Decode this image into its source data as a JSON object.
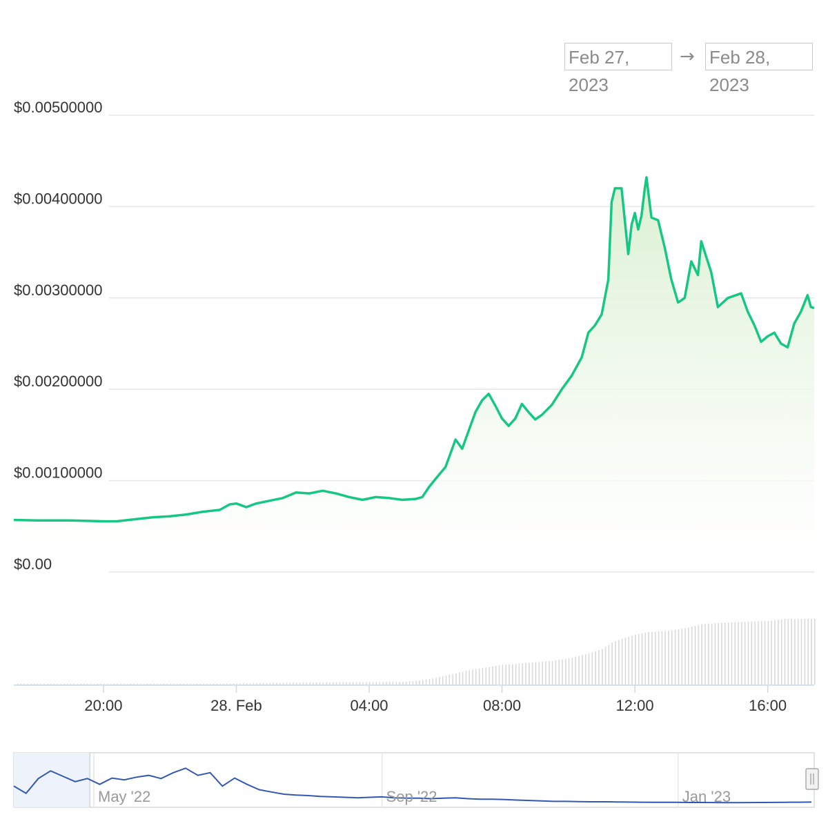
{
  "range_selector": {
    "from": "Feb 27, 2023",
    "arrow": "→",
    "to": "Feb 28, 2023"
  },
  "colors": {
    "price_line": "#16c784",
    "area_fill_top": "#d8efcf",
    "area_fill_bottom": "#ffffff",
    "volume_bars": "#d9d9d9",
    "navigator_line": "#3257b3",
    "navigator_fill": "#eef3fb",
    "grid": "#e6e6e6",
    "axis_text": "#333333"
  },
  "chart_data": {
    "type": "line",
    "ylim": [
      0,
      0.005
    ],
    "yticks": [
      "$0.00",
      "$0.00100000",
      "$0.00200000",
      "$0.00300000",
      "$0.00400000",
      "$0.00500000"
    ],
    "ytick_values": [
      0,
      0.001,
      0.002,
      0.003,
      0.004,
      0.005
    ],
    "xlim_hours": [
      -6.7,
      17.4
    ],
    "xticks": [
      {
        "label": "20:00",
        "hour": -4
      },
      {
        "label": "28. Feb",
        "hour": 0
      },
      {
        "label": "04:00",
        "hour": 4
      },
      {
        "label": "08:00",
        "hour": 8
      },
      {
        "label": "12:00",
        "hour": 12
      },
      {
        "label": "16:00",
        "hour": 16
      }
    ],
    "grid": true,
    "series": [
      {
        "type": "area",
        "points": [
          [
            -6.7,
            0.00057
          ],
          [
            -6.0,
            0.000565
          ],
          [
            -5.0,
            0.000565
          ],
          [
            -4.5,
            0.00056
          ],
          [
            -4.0,
            0.000555
          ],
          [
            -3.6,
            0.000555
          ],
          [
            -3.0,
            0.00058
          ],
          [
            -2.5,
            0.0006
          ],
          [
            -2.0,
            0.00061
          ],
          [
            -1.5,
            0.00063
          ],
          [
            -1.0,
            0.00066
          ],
          [
            -0.5,
            0.00068
          ],
          [
            -0.2,
            0.00074
          ],
          [
            0.0,
            0.00075
          ],
          [
            0.3,
            0.00071
          ],
          [
            0.6,
            0.00075
          ],
          [
            1.0,
            0.00078
          ],
          [
            1.4,
            0.00081
          ],
          [
            1.8,
            0.00087
          ],
          [
            2.2,
            0.00086
          ],
          [
            2.6,
            0.00089
          ],
          [
            3.0,
            0.00086
          ],
          [
            3.4,
            0.00082
          ],
          [
            3.8,
            0.00079
          ],
          [
            4.2,
            0.00082
          ],
          [
            4.6,
            0.00081
          ],
          [
            5.0,
            0.00079
          ],
          [
            5.4,
            0.0008
          ],
          [
            5.6,
            0.00082
          ],
          [
            5.8,
            0.00093
          ],
          [
            6.0,
            0.00102
          ],
          [
            6.3,
            0.00115
          ],
          [
            6.6,
            0.00145
          ],
          [
            6.8,
            0.00135
          ],
          [
            7.0,
            0.00155
          ],
          [
            7.2,
            0.00175
          ],
          [
            7.4,
            0.00188
          ],
          [
            7.6,
            0.00195
          ],
          [
            7.8,
            0.00182
          ],
          [
            8.0,
            0.00168
          ],
          [
            8.2,
            0.0016
          ],
          [
            8.4,
            0.00168
          ],
          [
            8.6,
            0.00184
          ],
          [
            8.8,
            0.00175
          ],
          [
            9.0,
            0.00167
          ],
          [
            9.2,
            0.00172
          ],
          [
            9.5,
            0.00183
          ],
          [
            9.8,
            0.002
          ],
          [
            10.1,
            0.00215
          ],
          [
            10.4,
            0.00235
          ],
          [
            10.6,
            0.00262
          ],
          [
            10.8,
            0.0027
          ],
          [
            11.0,
            0.00282
          ],
          [
            11.2,
            0.0032
          ],
          [
            11.3,
            0.00405
          ],
          [
            11.4,
            0.0042
          ],
          [
            11.6,
            0.0042
          ],
          [
            11.8,
            0.00348
          ],
          [
            11.9,
            0.0038
          ],
          [
            12.0,
            0.00393
          ],
          [
            12.1,
            0.00375
          ],
          [
            12.2,
            0.0039
          ],
          [
            12.3,
            0.0042
          ],
          [
            12.35,
            0.00432
          ],
          [
            12.5,
            0.00388
          ],
          [
            12.7,
            0.00385
          ],
          [
            12.9,
            0.00355
          ],
          [
            13.1,
            0.0032
          ],
          [
            13.3,
            0.00295
          ],
          [
            13.5,
            0.003
          ],
          [
            13.7,
            0.0034
          ],
          [
            13.9,
            0.00325
          ],
          [
            14.0,
            0.00362
          ],
          [
            14.3,
            0.00328
          ],
          [
            14.5,
            0.0029
          ],
          [
            14.8,
            0.003
          ],
          [
            15.2,
            0.00305
          ],
          [
            15.4,
            0.00285
          ],
          [
            15.6,
            0.0027
          ],
          [
            15.8,
            0.00252
          ],
          [
            16.0,
            0.00258
          ],
          [
            16.2,
            0.00262
          ],
          [
            16.4,
            0.0025
          ],
          [
            16.6,
            0.00246
          ],
          [
            16.8,
            0.00272
          ],
          [
            17.0,
            0.00285
          ],
          [
            17.2,
            0.00303
          ],
          [
            17.3,
            0.0029
          ],
          [
            17.4,
            0.00289
          ]
        ]
      }
    ],
    "volume": {
      "type": "bar",
      "relative_levels": [
        [
          -6.7,
          0.0
        ],
        [
          -0.5,
          0.01
        ],
        [
          2.0,
          0.03
        ],
        [
          5.0,
          0.04
        ],
        [
          5.5,
          0.06
        ],
        [
          6.0,
          0.1
        ],
        [
          6.5,
          0.16
        ],
        [
          7.0,
          0.22
        ],
        [
          7.5,
          0.26
        ],
        [
          8.0,
          0.3
        ],
        [
          8.5,
          0.32
        ],
        [
          9.0,
          0.34
        ],
        [
          9.5,
          0.36
        ],
        [
          10.0,
          0.4
        ],
        [
          10.5,
          0.46
        ],
        [
          11.0,
          0.54
        ],
        [
          11.3,
          0.64
        ],
        [
          11.6,
          0.7
        ],
        [
          12.0,
          0.76
        ],
        [
          12.4,
          0.8
        ],
        [
          13.0,
          0.82
        ],
        [
          13.5,
          0.86
        ],
        [
          14.0,
          0.92
        ],
        [
          14.5,
          0.94
        ],
        [
          15.0,
          0.95
        ],
        [
          15.5,
          0.96
        ],
        [
          16.0,
          0.97
        ],
        [
          16.5,
          1.0
        ],
        [
          17.0,
          1.0
        ],
        [
          17.4,
          1.0
        ]
      ]
    },
    "navigator": {
      "labels": [
        {
          "label": "May '22",
          "position": 0.1
        },
        {
          "label": "Sep '22",
          "position": 0.46
        },
        {
          "label": "Jan '23",
          "position": 0.83
        }
      ],
      "relative_values": [
        0.38,
        0.22,
        0.55,
        0.72,
        0.6,
        0.48,
        0.55,
        0.42,
        0.56,
        0.52,
        0.58,
        0.62,
        0.55,
        0.68,
        0.78,
        0.62,
        0.68,
        0.38,
        0.56,
        0.42,
        0.3,
        0.25,
        0.2,
        0.18,
        0.17,
        0.15,
        0.14,
        0.13,
        0.12,
        0.13,
        0.14,
        0.12,
        0.11,
        0.11,
        0.1,
        0.11,
        0.12,
        0.1,
        0.09,
        0.09,
        0.08,
        0.07,
        0.06,
        0.05,
        0.04,
        0.04,
        0.035,
        0.03,
        0.03,
        0.028,
        0.025,
        0.022,
        0.02,
        0.02,
        0.018,
        0.016,
        0.015,
        0.014,
        0.013,
        0.013,
        0.014,
        0.015,
        0.017,
        0.02,
        0.022,
        0.024
      ]
    }
  }
}
